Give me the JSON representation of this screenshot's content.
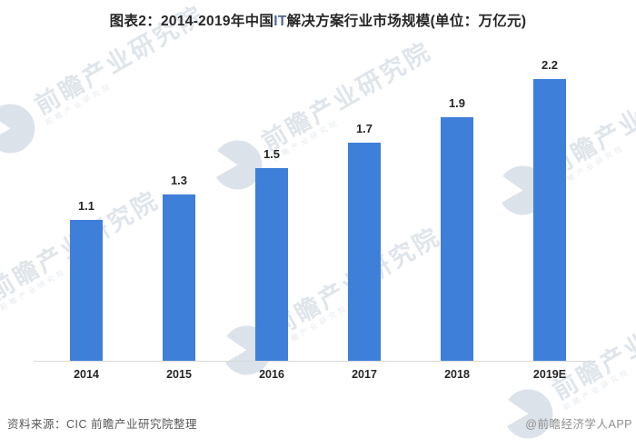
{
  "title": {
    "part1": "图表2：2014-2019年中国",
    "highlight": "IT",
    "part2": "解决方案行业市场规模(单位：万亿元)",
    "full": "图表2：2014-2019年中国IT解决方案行业市场规模(单位：万亿元)"
  },
  "chart_data": {
    "type": "bar",
    "categories": [
      "2014",
      "2015",
      "2016",
      "2017",
      "2018",
      "2019E"
    ],
    "values": [
      1.1,
      1.3,
      1.5,
      1.7,
      1.9,
      2.2
    ],
    "title": "图表2：2014-2019年中国IT解决方案行业市场规模(单位：万亿元)",
    "unit": "万亿元",
    "xlabel": "",
    "ylabel": "",
    "ylim": [
      0,
      2.4
    ],
    "grid": false,
    "legend": false,
    "data_labels": true,
    "bar_color": "#3e7fd9",
    "label_color": "#262626",
    "axis_line_color": "#d9d9d9"
  },
  "footer": {
    "source": "资料来源：CIC 前瞻产业研究院整理",
    "credit": "@前瞻经济学人APP"
  },
  "watermark": {
    "text": "前瞻产业研究院",
    "logo": "qianzhan-circle-logo"
  }
}
